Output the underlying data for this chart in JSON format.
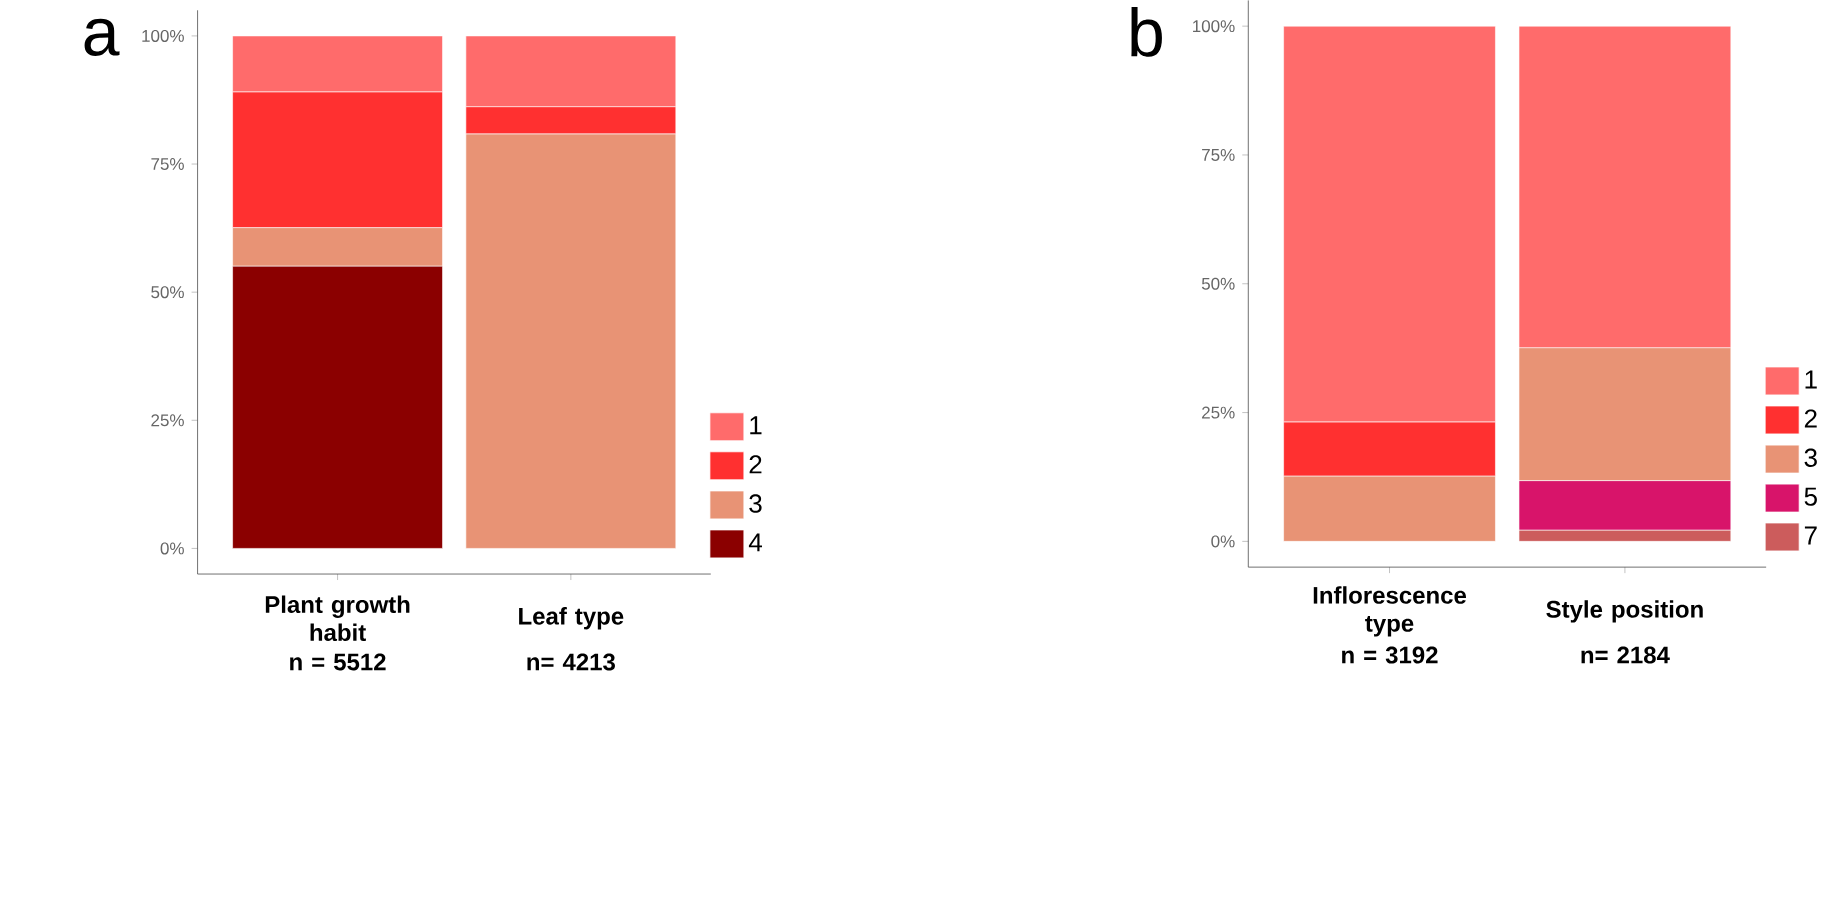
{
  "chart_data": [
    {
      "type": "bar",
      "title": "a",
      "stacked": true,
      "legend": "right",
      "categories": [
        "Plant growth habit",
        "Leaf type"
      ],
      "annotations": [
        "n = 5512",
        "n= 4213"
      ],
      "ylim": [
        -5,
        105
      ],
      "yticks": [
        {
          "value": 0,
          "label": "0%"
        },
        {
          "value": 25,
          "label": "25%"
        },
        {
          "value": 50,
          "label": "50%"
        },
        {
          "value": 75,
          "label": "75%"
        },
        {
          "value": 100,
          "label": "100%"
        }
      ],
      "series": [
        {
          "name": "4",
          "color": "#8b0000",
          "values": [
            55.1,
            null
          ]
        },
        {
          "name": "3",
          "color": "#e89375",
          "values": [
            7.5,
            80.9
          ]
        },
        {
          "name": "2",
          "color": "#ff3030",
          "values": [
            26.5,
            5.3
          ]
        },
        {
          "name": "1",
          "color": "#ff6b6b",
          "values": [
            10.9,
            13.8
          ]
        }
      ]
    },
    {
      "type": "bar",
      "title": "b",
      "stacked": true,
      "legend": "right",
      "categories": [
        "Inflorescence type",
        "Style position"
      ],
      "annotations": [
        "n = 3192",
        "n= 2184"
      ],
      "ylim": [
        -5,
        105
      ],
      "yticks": [
        {
          "value": 0,
          "label": "0%"
        },
        {
          "value": 25,
          "label": "25%"
        },
        {
          "value": 50,
          "label": "50%"
        },
        {
          "value": 75,
          "label": "75%"
        },
        {
          "value": 100,
          "label": "100%"
        }
      ],
      "series": [
        {
          "name": "7",
          "color": "#cc5c5c",
          "values": [
            null,
            2.2
          ]
        },
        {
          "name": "5",
          "color": "#d8146a",
          "values": [
            null,
            9.6
          ]
        },
        {
          "name": "3",
          "color": "#e89375",
          "values": [
            12.7,
            25.8
          ]
        },
        {
          "name": "2",
          "color": "#ff3030",
          "values": [
            10.5,
            null
          ]
        },
        {
          "name": "1",
          "color": "#ff6b6b",
          "values": [
            76.8,
            62.4
          ]
        }
      ]
    }
  ]
}
